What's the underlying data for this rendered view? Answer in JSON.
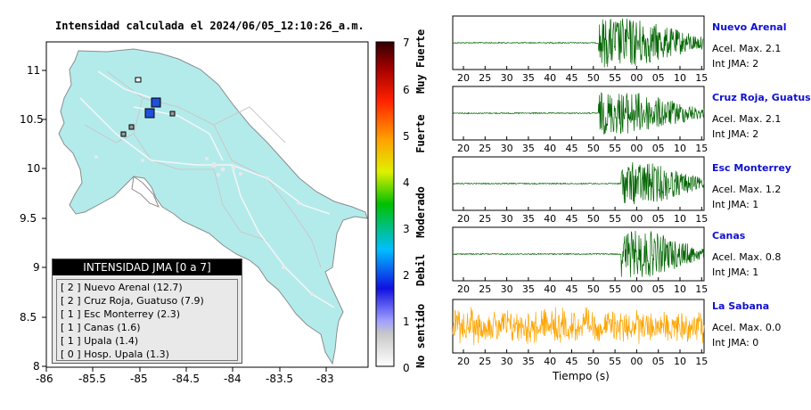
{
  "map": {
    "title": "Intensidad calculada el 2024/06/05_12:10:26_a.m.",
    "x_ticks": [
      "-86",
      "-85.5",
      "-85",
      "-84.5",
      "-84",
      "-83.5",
      "-83"
    ],
    "y_ticks": [
      "11",
      "10.5",
      "10",
      "9.5",
      "9",
      "8.5",
      "8"
    ],
    "land_color": "#b3ebeb",
    "stations": [
      {
        "name": "Nuevo Arenal",
        "color": "#2050d8"
      },
      {
        "name": "Cruz Roja, Guatuso",
        "color": "#2050d8"
      },
      {
        "name": "Esc Monterrey",
        "color": "#9a9a9a"
      },
      {
        "name": "Canas",
        "color": "#9a9a9a"
      },
      {
        "name": "Upala",
        "color": "#9a9a9a"
      },
      {
        "name": "Hosp. Upala",
        "color": "#f8f8f8"
      }
    ]
  },
  "legend": {
    "title": "INTENSIDAD JMA [0 a 7]",
    "items": [
      "[ 2 ]  Nuevo Arenal (12.7)",
      "[ 2 ]  Cruz Roja, Guatuso (7.9)",
      "[ 1 ]  Esc Monterrey (2.3)",
      "[ 1 ]  Canas (1.6)",
      "[ 1 ]  Upala (1.4)",
      "[ 0 ]  Hosp. Upala (1.3)"
    ]
  },
  "colorbar": {
    "ticks": [
      "7",
      "6",
      "5",
      "4",
      "3",
      "2",
      "1",
      "0"
    ],
    "words": [
      "Muy Fuerte",
      "Fuerte",
      "Moderado",
      "Debil",
      "No sentido"
    ]
  },
  "seismograms": {
    "time_ticks": [
      "20",
      "25",
      "30",
      "35",
      "40",
      "45",
      "50",
      "55",
      "00",
      "05",
      "10",
      "15"
    ],
    "xlabel": "Tiempo (s)",
    "traces": [
      {
        "name": "Nuevo Arenal",
        "acel": "Acel. Max. 2.1",
        "int": "Int JMA: 2",
        "color": "#006400"
      },
      {
        "name": "Cruz Roja, Guatuso",
        "acel": "Acel. Max. 2.1",
        "int": "Int JMA: 2",
        "color": "#006400"
      },
      {
        "name": "Esc Monterrey",
        "acel": "Acel. Max. 1.2",
        "int": "Int JMA: 1",
        "color": "#006400"
      },
      {
        "name": "Canas",
        "acel": "Acel. Max. 0.8",
        "int": "Int JMA: 1",
        "color": "#006400"
      },
      {
        "name": "La Sabana",
        "acel": "Acel. Max. 0.0",
        "int": "Int JMA: 0",
        "color": "#ffa500"
      }
    ]
  }
}
